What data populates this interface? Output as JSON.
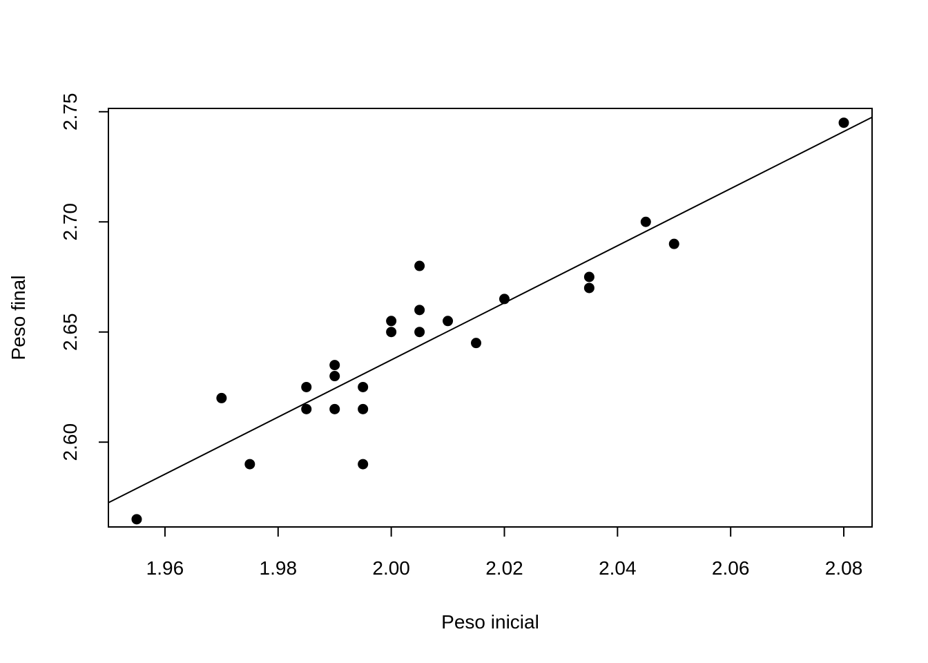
{
  "chart_data": {
    "type": "scatter",
    "title": "",
    "xlabel": "Peso inicial",
    "ylabel": "Peso final",
    "xlim": [
      1.95,
      2.085
    ],
    "ylim": [
      2.5615,
      2.7515
    ],
    "x_ticks": [
      1.96,
      1.98,
      2.0,
      2.02,
      2.04,
      2.06,
      2.08
    ],
    "x_tick_labels": [
      "1.96",
      "1.98",
      "2.00",
      "2.02",
      "2.04",
      "2.06",
      "2.08"
    ],
    "y_ticks": [
      2.6,
      2.65,
      2.7,
      2.75
    ],
    "y_tick_labels": [
      "2.60",
      "2.65",
      "2.70",
      "2.75"
    ],
    "grid": false,
    "legend": "none",
    "colors": {
      "points": "#000000",
      "line": "#000000",
      "axes": "#000000"
    },
    "series": [
      {
        "x": [
          1.955,
          1.97,
          1.975,
          1.985,
          1.985,
          1.99,
          1.99,
          1.99,
          1.995,
          1.995,
          1.995,
          2.0,
          2.0,
          2.005,
          2.005,
          2.005,
          2.01,
          2.015,
          2.02,
          2.035,
          2.035,
          2.045,
          2.05,
          2.08
        ],
        "y": [
          2.565,
          2.62,
          2.59,
          2.625,
          2.615,
          2.635,
          2.63,
          2.615,
          2.625,
          2.615,
          2.59,
          2.655,
          2.65,
          2.68,
          2.66,
          2.65,
          2.655,
          2.645,
          2.665,
          2.675,
          2.67,
          2.7,
          2.69,
          2.745
        ]
      }
    ],
    "regression_line": {
      "x": [
        1.95,
        2.085
      ],
      "y": [
        2.5725,
        2.7475
      ]
    }
  }
}
